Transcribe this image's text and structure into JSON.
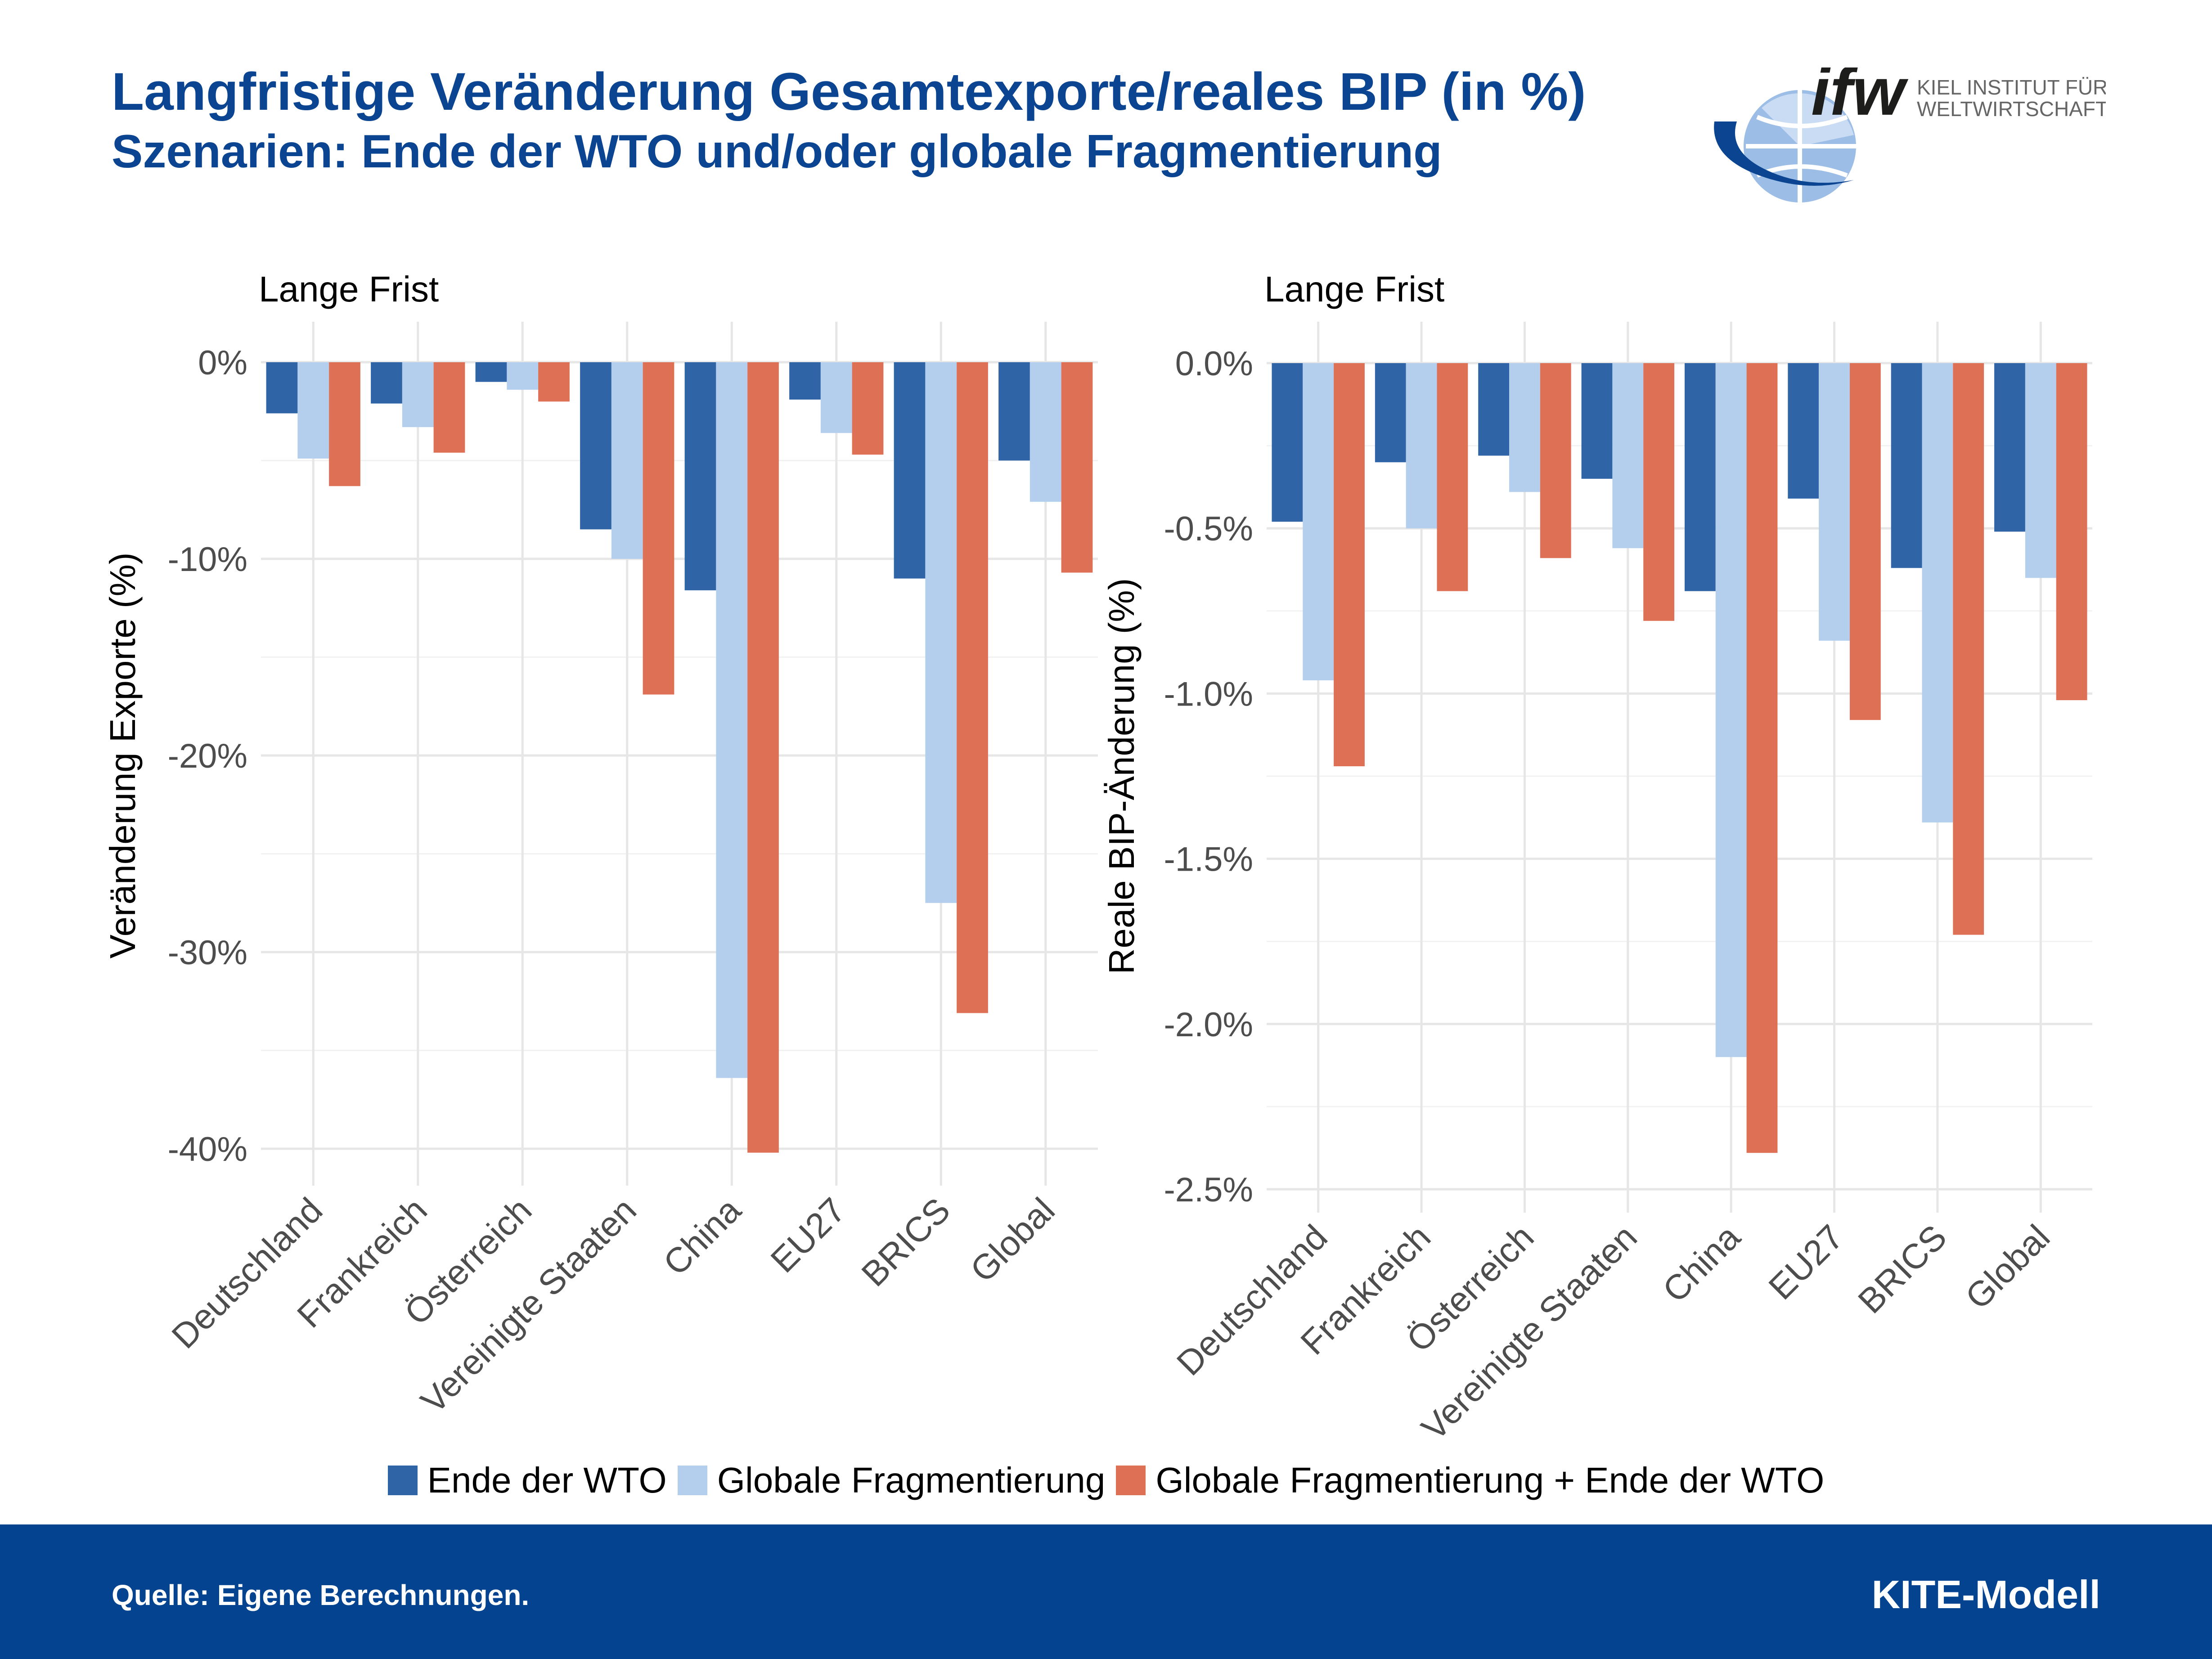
{
  "header": {
    "title": "Langfristige Veränderung Gesamtexporte/reales BIP (in %)",
    "subtitle": "Szenarien: Ende der WTO und/oder globale Fragmentierung"
  },
  "logo": {
    "wordmark": "ifw",
    "line1": "KIEL INSTITUT FÜR",
    "line2": "WELTWIRTSCHAFT"
  },
  "colors": {
    "series1": "#2f64a7",
    "series2": "#b4cfee",
    "series3": "#dd7055",
    "title": "#0b4592",
    "footer": "#044390"
  },
  "legend": {
    "items": [
      "Ende der WTO",
      "Globale Fragmentierung",
      "Globale Fragmentierung + Ende der WTO"
    ]
  },
  "footer": {
    "source": "Quelle: Eigene Berechnungen.",
    "model": "KITE-Modell"
  },
  "chart_data": [
    {
      "type": "bar",
      "title": "Lange Frist",
      "ylabel": "Veränderung Exporte (%)",
      "categories": [
        "Deutschland",
        "Frankreich",
        "Österreich",
        "Vereinigte Staaten",
        "China",
        "EU27",
        "BRICS",
        "Global"
      ],
      "ylim": [
        -42,
        2
      ],
      "yticks": [
        0,
        -10,
        -20,
        -30,
        -40
      ],
      "ytick_labels": [
        "0%",
        "-10%",
        "-20%",
        "-30%",
        "-40%"
      ],
      "grid": true,
      "legend": "bottom",
      "series": [
        {
          "name": "Ende der WTO",
          "values": [
            -2.6,
            -2.1,
            -1.0,
            -8.5,
            -11.6,
            -1.9,
            -11.0,
            -5.0
          ]
        },
        {
          "name": "Globale Fragmentierung",
          "values": [
            -4.9,
            -3.3,
            -1.4,
            -10.0,
            -36.4,
            -3.6,
            -27.5,
            -7.1
          ]
        },
        {
          "name": "Globale Fragmentierung + Ende der WTO",
          "values": [
            -6.3,
            -4.6,
            -2.0,
            -16.9,
            -40.2,
            -4.7,
            -33.1,
            -10.7
          ]
        }
      ]
    },
    {
      "type": "bar",
      "title": "Lange Frist",
      "ylabel": "Reale BIP-Änderung (%)",
      "categories": [
        "Deutschland",
        "Frankreich",
        "Österreich",
        "Vereinigte Staaten",
        "China",
        "EU27",
        "BRICS",
        "Global"
      ],
      "ylim": [
        -2.5,
        0.05
      ],
      "yticks": [
        0,
        -0.5,
        -1.0,
        -1.5,
        -2.0,
        -2.5
      ],
      "ytick_labels": [
        "0.0%",
        "-0.5%",
        "-1.0%",
        "-1.5%",
        "-2.0%",
        "-2.5%"
      ],
      "grid": true,
      "legend": "bottom",
      "series": [
        {
          "name": "Ende der WTO",
          "values": [
            -0.48,
            -0.3,
            -0.28,
            -0.35,
            -0.69,
            -0.41,
            -0.62,
            -0.51
          ]
        },
        {
          "name": "Globale Fragmentierung",
          "values": [
            -0.96,
            -0.5,
            -0.39,
            -0.56,
            -2.1,
            -0.84,
            -1.39,
            -0.65
          ]
        },
        {
          "name": "Globale Fragmentierung + Ende der WTO",
          "values": [
            -1.22,
            -0.69,
            -0.59,
            -0.78,
            -2.39,
            -1.08,
            -1.73,
            -1.02
          ]
        }
      ]
    }
  ]
}
